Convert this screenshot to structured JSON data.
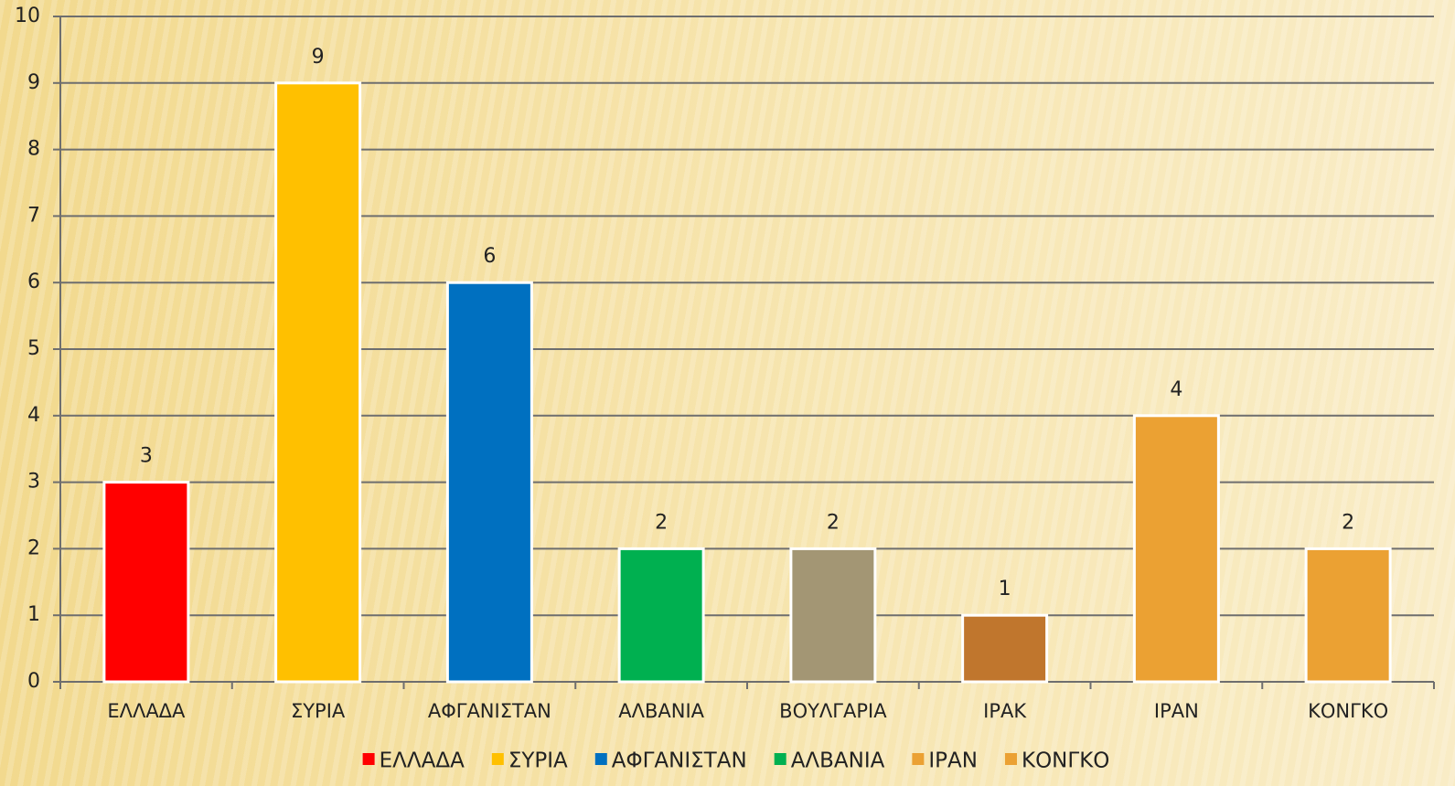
{
  "chart_data": {
    "type": "bar",
    "categories": [
      "ΕΛΛΑΔΑ",
      "ΣΥΡΙΑ",
      "ΑΦΓΑΝΙΣΤΑΝ",
      "ΑΛΒΑΝΙΑ",
      "ΒΟΥΛΓΑΡΙΑ",
      "ΙΡΑΚ",
      "ΙΡΑΝ",
      "ΚΟΝΓΚΟ"
    ],
    "values": [
      3,
      9,
      6,
      2,
      2,
      1,
      4,
      2
    ],
    "colors": [
      "#ff0000",
      "#ffc000",
      "#0070c0",
      "#00b050",
      "#a39674",
      "#c0762d",
      "#eba133",
      "#eba133"
    ],
    "legend": [
      {
        "name": "ΕΛΛΑΔΑ",
        "color": "#ff0000"
      },
      {
        "name": "ΣΥΡΙΑ",
        "color": "#ffc000"
      },
      {
        "name": "ΑΦΓΑΝΙΣΤΑΝ",
        "color": "#0070c0"
      },
      {
        "name": "ΑΛΒΑΝΙΑ",
        "color": "#00b050"
      },
      {
        "name": "ΙΡΑΝ",
        "color": "#eba133"
      },
      {
        "name": "ΚΟΝΓΚΟ",
        "color": "#eba133"
      }
    ],
    "ylim": [
      0,
      10
    ],
    "yticks": [
      0,
      1,
      2,
      3,
      4,
      5,
      6,
      7,
      8,
      9,
      10
    ],
    "grid": true
  }
}
